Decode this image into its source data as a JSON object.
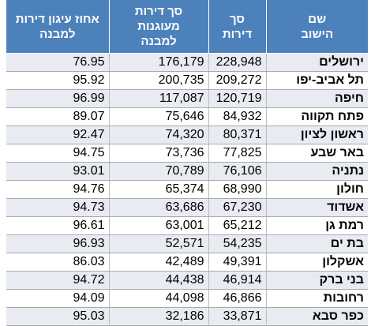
{
  "header": {
    "pct_line1": "אחוז עיגון דירות",
    "pct_line2": "למבנה",
    "reg_line1": "סך דירות",
    "reg_line2": "מעוגנות",
    "reg_line3": "למבנה",
    "total_line1": "סך",
    "total_line2": "דירות",
    "name_line1": "שם",
    "name_line2": "הישוב"
  },
  "rows": [
    {
      "name": "ירושלים",
      "total": "228,948",
      "registered": "176,179",
      "pct": "76.95"
    },
    {
      "name": "תל אביב-יפו",
      "total": "209,272",
      "registered": "200,735",
      "pct": "95.92"
    },
    {
      "name": "חיפה",
      "total": "120,719",
      "registered": "117,087",
      "pct": "96.99"
    },
    {
      "name": "פתח תקווה",
      "total": "84,932",
      "registered": "75,646",
      "pct": "89.07"
    },
    {
      "name": "ראשון לציון",
      "total": "80,371",
      "registered": "74,320",
      "pct": "92.47"
    },
    {
      "name": "באר שבע",
      "total": "77,825",
      "registered": "73,736",
      "pct": "94.75"
    },
    {
      "name": "נתניה",
      "total": "76,106",
      "registered": "70,789",
      "pct": "93.01"
    },
    {
      "name": "חולון",
      "total": "68,990",
      "registered": "65,374",
      "pct": "94.76"
    },
    {
      "name": "אשדוד",
      "total": "67,230",
      "registered": "63,686",
      "pct": "94.73"
    },
    {
      "name": "רמת גן",
      "total": "65,212",
      "registered": "63,001",
      "pct": "96.61"
    },
    {
      "name": "בת ים",
      "total": "54,235",
      "registered": "52,571",
      "pct": "96.93"
    },
    {
      "name": "אשקלון",
      "total": "49,391",
      "registered": "42,489",
      "pct": "86.03"
    },
    {
      "name": "בני ברק",
      "total": "46,914",
      "registered": "44,438",
      "pct": "94.72"
    },
    {
      "name": "רחובות",
      "total": "46,866",
      "registered": "44,098",
      "pct": "94.09"
    },
    {
      "name": "כפר סבא",
      "total": "33,871",
      "registered": "32,186",
      "pct": "95.03"
    }
  ]
}
